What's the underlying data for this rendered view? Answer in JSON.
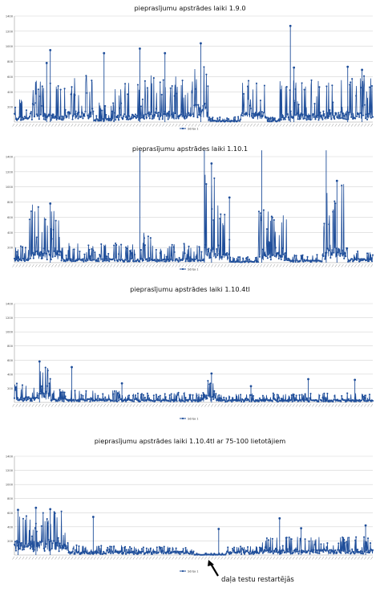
{
  "colors": {
    "series": "#1f4e9a",
    "grid": "#d4d4d4",
    "axis": "#9a9a9a",
    "text": "#444444"
  },
  "annotation": "daļa testu restartējās",
  "chart_data": [
    {
      "type": "line",
      "title": "pieprasījumu apstrādes laiki 1.9.0",
      "ylim": [
        0,
        1400
      ],
      "yticks": [
        200,
        400,
        600,
        800,
        1000,
        1200,
        1400
      ],
      "grid": true,
      "legend": "bottom-center",
      "series": [
        {
          "name": "Sērija 1"
        }
      ],
      "segments": [
        {
          "start": 0.0,
          "end": 0.04,
          "base": 60,
          "top": 320
        },
        {
          "start": 0.04,
          "end": 0.1,
          "base": 90,
          "top": 560
        },
        {
          "start": 0.1,
          "end": 0.14,
          "base": 80,
          "top": 500
        },
        {
          "start": 0.14,
          "end": 0.22,
          "base": 110,
          "top": 620
        },
        {
          "start": 0.22,
          "end": 0.28,
          "base": 40,
          "top": 260
        },
        {
          "start": 0.28,
          "end": 0.36,
          "base": 80,
          "top": 520
        },
        {
          "start": 0.36,
          "end": 0.42,
          "base": 110,
          "top": 620
        },
        {
          "start": 0.42,
          "end": 0.48,
          "base": 110,
          "top": 620
        },
        {
          "start": 0.48,
          "end": 0.54,
          "base": 180,
          "top": 780
        },
        {
          "start": 0.54,
          "end": 0.63,
          "base": 15,
          "top": 70
        },
        {
          "start": 0.63,
          "end": 0.7,
          "base": 110,
          "top": 580
        },
        {
          "start": 0.7,
          "end": 0.74,
          "base": 15,
          "top": 70
        },
        {
          "start": 0.74,
          "end": 0.85,
          "base": 90,
          "top": 560
        },
        {
          "start": 0.85,
          "end": 1.0,
          "base": 110,
          "top": 640
        }
      ],
      "peaks": [
        [
          0.09,
          780
        ],
        [
          0.1,
          950
        ],
        [
          0.25,
          910
        ],
        [
          0.35,
          970
        ],
        [
          0.42,
          910
        ],
        [
          0.52,
          1040
        ],
        [
          0.77,
          1270
        ],
        [
          0.78,
          720
        ],
        [
          0.93,
          730
        ],
        [
          0.97,
          690
        ]
      ]
    },
    {
      "type": "line",
      "title": "pieprasījumu apstrādes laiki 1.10.1",
      "ylim": [
        0,
        1400
      ],
      "yticks": [
        200,
        400,
        600,
        800,
        1000,
        1200,
        1400
      ],
      "grid": true,
      "legend": "bottom-center",
      "series": [
        {
          "name": "Sērija 1"
        }
      ],
      "segments": [
        {
          "start": 0.0,
          "end": 0.04,
          "base": 50,
          "top": 260
        },
        {
          "start": 0.04,
          "end": 0.13,
          "base": 120,
          "top": 780
        },
        {
          "start": 0.13,
          "end": 0.35,
          "base": 40,
          "top": 260
        },
        {
          "start": 0.35,
          "end": 0.38,
          "base": 60,
          "top": 420
        },
        {
          "start": 0.38,
          "end": 0.53,
          "base": 40,
          "top": 250
        },
        {
          "start": 0.53,
          "end": 0.57,
          "base": 200,
          "top": 1320
        },
        {
          "start": 0.57,
          "end": 0.6,
          "base": 100,
          "top": 650
        },
        {
          "start": 0.6,
          "end": 0.68,
          "base": 15,
          "top": 80
        },
        {
          "start": 0.68,
          "end": 0.72,
          "base": 100,
          "top": 700
        },
        {
          "start": 0.72,
          "end": 0.76,
          "base": 100,
          "top": 640
        },
        {
          "start": 0.76,
          "end": 0.86,
          "base": 25,
          "top": 110
        },
        {
          "start": 0.86,
          "end": 0.93,
          "base": 150,
          "top": 1070
        },
        {
          "start": 0.93,
          "end": 1.0,
          "base": 40,
          "top": 150
        }
      ],
      "peaks": [
        [
          0.35,
          1500
        ],
        [
          0.53,
          1500
        ],
        [
          0.69,
          1500
        ],
        [
          0.87,
          1500
        ],
        [
          0.55,
          1310
        ],
        [
          0.6,
          860
        ],
        [
          0.9,
          1080
        ],
        [
          0.1,
          780
        ]
      ]
    },
    {
      "type": "line",
      "title": "pieprasījumu apstrādes laiki 1.10.4tl",
      "ylim": [
        0,
        1400
      ],
      "yticks": [
        200,
        400,
        600,
        800,
        1000,
        1200,
        1400
      ],
      "grid": true,
      "legend": "bottom-center",
      "series": [
        {
          "name": "Sērija 1"
        }
      ],
      "segments": [
        {
          "start": 0.0,
          "end": 0.06,
          "base": 60,
          "top": 270
        },
        {
          "start": 0.06,
          "end": 0.1,
          "base": 120,
          "top": 520
        },
        {
          "start": 0.1,
          "end": 0.3,
          "base": 40,
          "top": 180
        },
        {
          "start": 0.3,
          "end": 0.53,
          "base": 30,
          "top": 140
        },
        {
          "start": 0.53,
          "end": 0.56,
          "base": 80,
          "top": 330
        },
        {
          "start": 0.56,
          "end": 1.0,
          "base": 30,
          "top": 130
        }
      ],
      "peaks": [
        [
          0.07,
          580
        ],
        [
          0.16,
          500
        ],
        [
          0.3,
          270
        ],
        [
          0.55,
          410
        ],
        [
          0.66,
          230
        ],
        [
          0.82,
          330
        ],
        [
          0.95,
          320
        ]
      ]
    },
    {
      "type": "line",
      "title": "pieprasījumu apstrādes laiki 1.10.4tl ar 75-100 lietotājiem",
      "ylim": [
        0,
        1400
      ],
      "yticks": [
        200,
        400,
        600,
        800,
        1000,
        1200,
        1400
      ],
      "grid": true,
      "legend": "bottom-center",
      "series": [
        {
          "name": "Sērija 1"
        }
      ],
      "segments": [
        {
          "start": 0.0,
          "end": 0.15,
          "base": 160,
          "top": 620
        },
        {
          "start": 0.15,
          "end": 0.3,
          "base": 40,
          "top": 140
        },
        {
          "start": 0.3,
          "end": 0.5,
          "base": 40,
          "top": 120
        },
        {
          "start": 0.5,
          "end": 0.59,
          "base": 5,
          "top": 25
        },
        {
          "start": 0.59,
          "end": 0.69,
          "base": 40,
          "top": 130
        },
        {
          "start": 0.69,
          "end": 1.0,
          "base": 60,
          "top": 260
        }
      ],
      "peaks": [
        [
          0.01,
          640
        ],
        [
          0.06,
          670
        ],
        [
          0.1,
          650
        ],
        [
          0.22,
          540
        ],
        [
          0.57,
          370
        ],
        [
          0.74,
          520
        ],
        [
          0.8,
          380
        ],
        [
          0.98,
          420
        ]
      ]
    }
  ]
}
